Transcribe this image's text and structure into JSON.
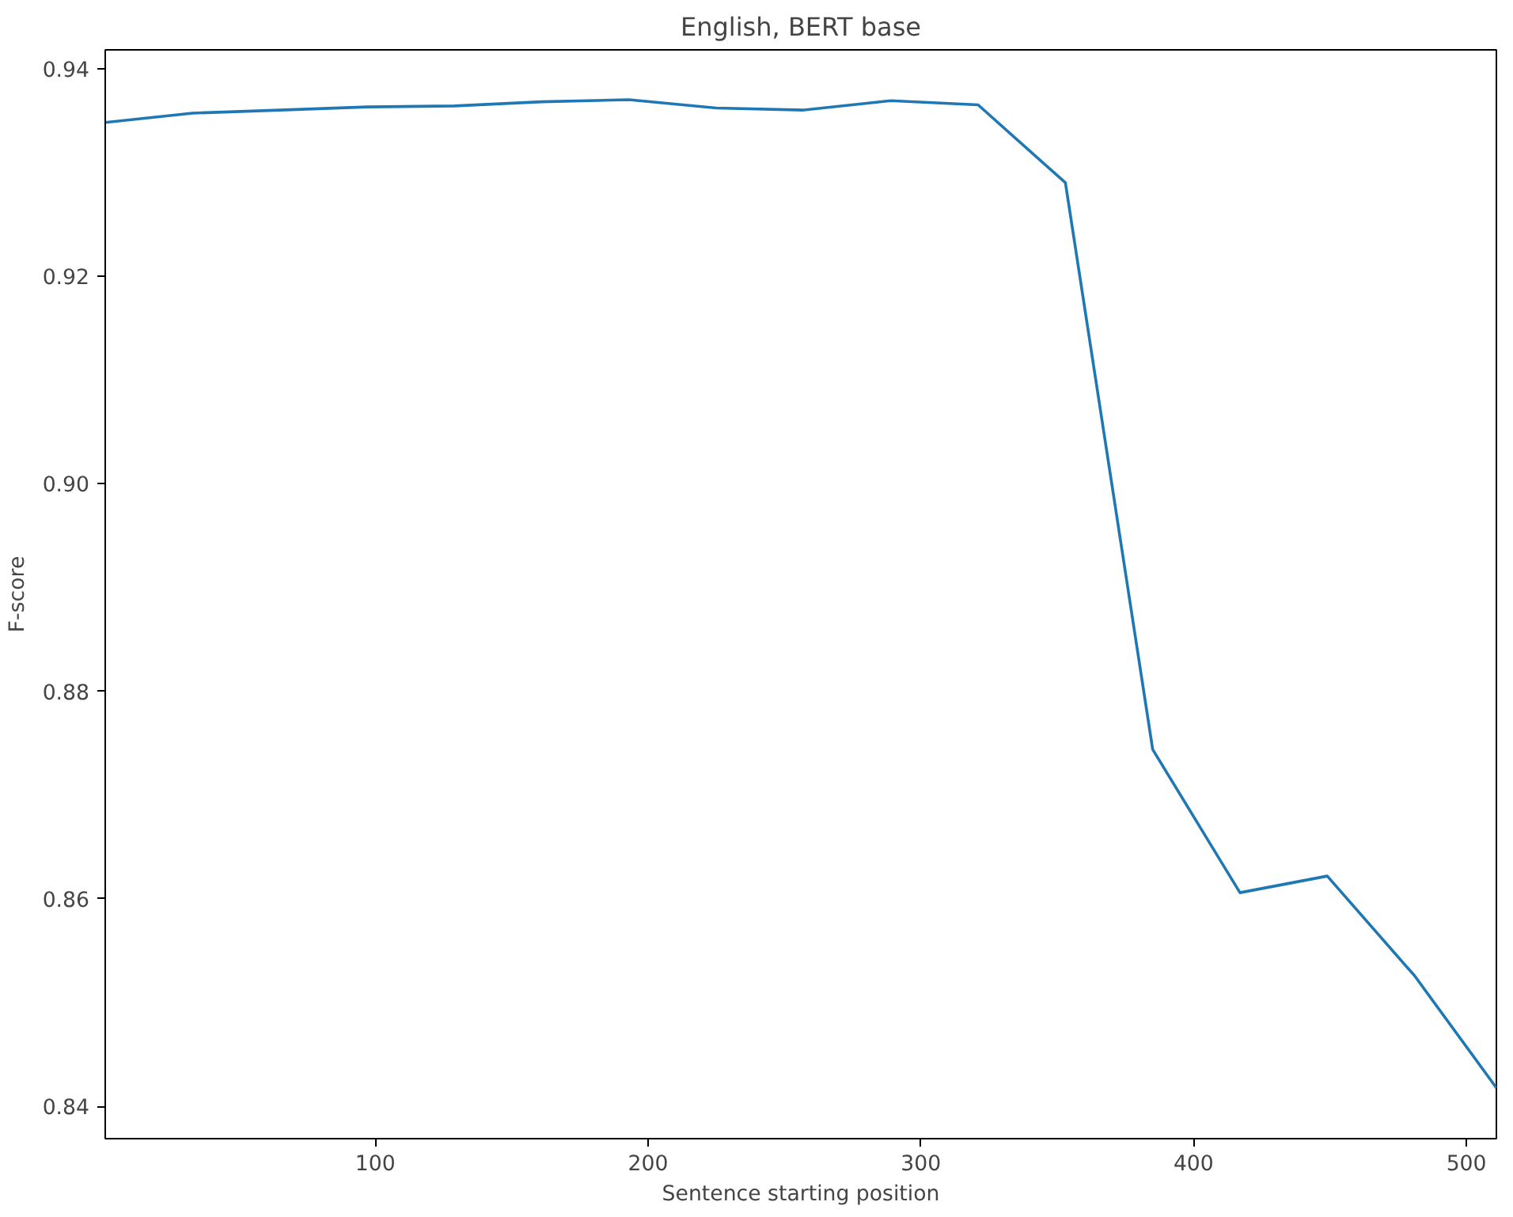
{
  "chart_data": {
    "type": "line",
    "title": "English, BERT base",
    "xlabel": "Sentence starting position",
    "ylabel": "F-score",
    "x": [
      1,
      33,
      65,
      97,
      129,
      161,
      193,
      225,
      257,
      289,
      321,
      353,
      385,
      417,
      449,
      481,
      511
    ],
    "series": [
      {
        "color": "#1f77b4",
        "values": [
          0.9348,
          0.9357,
          0.936,
          0.9363,
          0.9364,
          0.9368,
          0.937,
          0.9362,
          0.936,
          0.9369,
          0.9365,
          0.929,
          0.8744,
          0.8606,
          0.8622,
          0.8526,
          0.8418
        ]
      }
    ],
    "xlim": [
      1,
      511
    ],
    "ylim": [
      0.8369,
      0.9418
    ],
    "xticks": [
      100,
      200,
      300,
      400,
      500
    ],
    "yticks": [
      {
        "value": 0.84,
        "label": "0.84"
      },
      {
        "value": 0.86,
        "label": "0.86"
      },
      {
        "value": 0.88,
        "label": "0.88"
      },
      {
        "value": 0.9,
        "label": "0.90"
      },
      {
        "value": 0.92,
        "label": "0.92"
      },
      {
        "value": 0.94,
        "label": "0.94"
      }
    ],
    "grid": false,
    "line_style": "solid",
    "marker": "none"
  }
}
